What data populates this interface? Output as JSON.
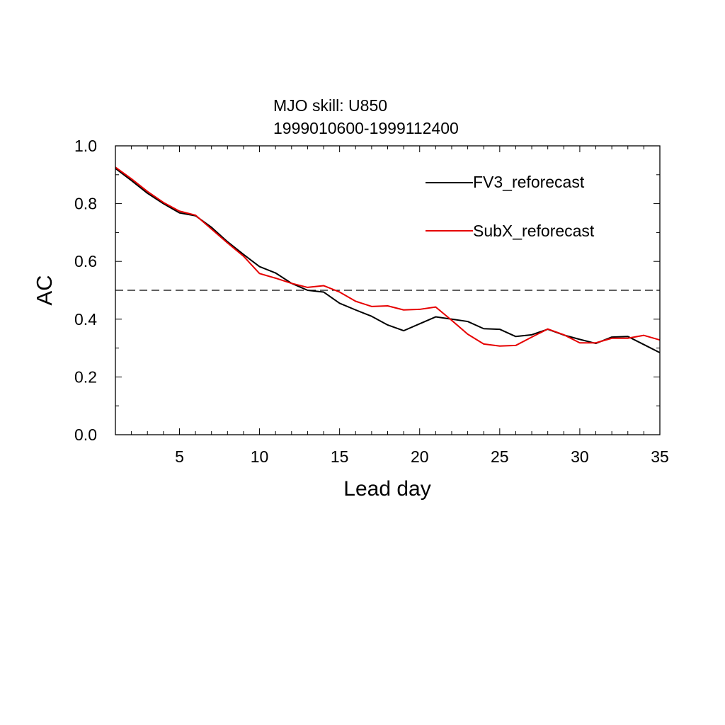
{
  "chart_data": {
    "type": "line",
    "title": "MJO skill: U850",
    "subtitle": "1999010600-1999112400",
    "xlabel": "Lead day",
    "ylabel": "AC",
    "xlim": [
      1,
      35
    ],
    "ylim": [
      0.0,
      1.0
    ],
    "xticks": [
      5,
      10,
      15,
      20,
      25,
      30,
      35
    ],
    "xtick_labels": [
      "5",
      "10",
      "15",
      "20",
      "25",
      "30",
      "35"
    ],
    "yticks": [
      0.0,
      0.2,
      0.4,
      0.6,
      0.8,
      1.0
    ],
    "ytick_labels": [
      "0.0",
      "0.2",
      "0.4",
      "0.6",
      "0.8",
      "1.0"
    ],
    "reference_line": 0.5,
    "legend_position": "top-right",
    "x": [
      1,
      2,
      3,
      4,
      5,
      6,
      7,
      8,
      9,
      10,
      11,
      12,
      13,
      14,
      15,
      16,
      17,
      18,
      19,
      20,
      21,
      22,
      23,
      24,
      25,
      26,
      27,
      28,
      29,
      30,
      31,
      32,
      33,
      34,
      35
    ],
    "series": [
      {
        "name": "FV3_reforecast",
        "color": "#000000",
        "values": [
          0.922,
          0.88,
          0.836,
          0.8,
          0.768,
          0.758,
          0.718,
          0.668,
          0.624,
          0.582,
          0.56,
          0.524,
          0.5,
          0.494,
          0.455,
          0.432,
          0.41,
          0.38,
          0.36,
          0.384,
          0.408,
          0.4,
          0.392,
          0.367,
          0.365,
          0.34,
          0.346,
          0.365,
          0.345,
          0.33,
          0.316,
          0.338,
          0.34,
          0.312,
          0.284
        ]
      },
      {
        "name": "SubX_reforecast",
        "color": "#e60000",
        "values": [
          0.926,
          0.886,
          0.842,
          0.804,
          0.774,
          0.76,
          0.712,
          0.664,
          0.618,
          0.558,
          0.542,
          0.524,
          0.51,
          0.516,
          0.494,
          0.462,
          0.444,
          0.446,
          0.432,
          0.434,
          0.442,
          0.396,
          0.348,
          0.314,
          0.307,
          0.309,
          0.338,
          0.366,
          0.346,
          0.318,
          0.318,
          0.334,
          0.334,
          0.344,
          0.328
        ]
      }
    ]
  }
}
